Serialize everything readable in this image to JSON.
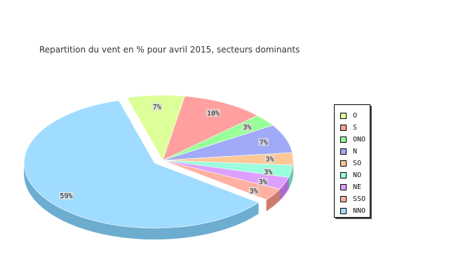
{
  "chart_data": {
    "type": "pie",
    "title": "Repartition du vent en % pour avril 2015, secteurs dominants",
    "categories": [
      "O",
      "S",
      "ONO",
      "N",
      "SO",
      "NO",
      "NE",
      "SSO",
      "NNO"
    ],
    "values": [
      7,
      10,
      3,
      7,
      3,
      3,
      3,
      3,
      59
    ],
    "labels": [
      "7%",
      "10%",
      "3%",
      "7%",
      "3%",
      "3%",
      "3%",
      "3%",
      "59%"
    ],
    "colors": [
      "#ddff99",
      "#ff9f9f",
      "#99ff99",
      "#a0aaf8",
      "#fdc896",
      "#99ffdd",
      "#dda0ff",
      "#ffb0a0",
      "#a0dcff"
    ],
    "side_colors": [
      "#aacc66",
      "#cc6b6b",
      "#66cc66",
      "#6c76c4",
      "#c99462",
      "#66ccaa",
      "#aa6ccc",
      "#cc7c6c",
      "#6cadd0"
    ],
    "exploded": [
      "NNO"
    ],
    "legend_position": "right",
    "style": "3d"
  }
}
